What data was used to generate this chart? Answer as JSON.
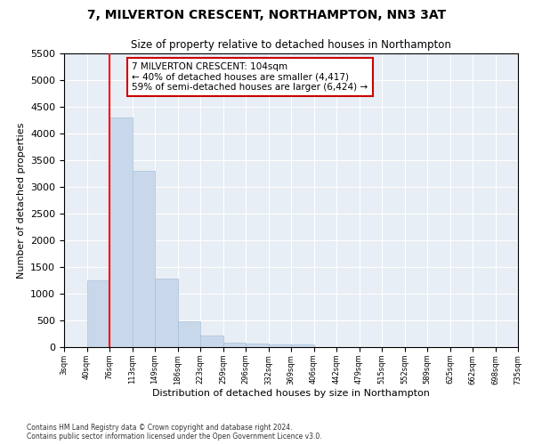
{
  "title": "7, MILVERTON CRESCENT, NORTHAMPTON, NN3 3AT",
  "subtitle": "Size of property relative to detached houses in Northampton",
  "xlabel": "Distribution of detached houses by size in Northampton",
  "ylabel": "Number of detached properties",
  "bar_color": "#c8d8ea",
  "bar_edgecolor": "#a8c0d8",
  "background_color": "#e8eef5",
  "grid_color": "#ffffff",
  "bin_labels": [
    "3sqm",
    "40sqm",
    "76sqm",
    "113sqm",
    "149sqm",
    "186sqm",
    "223sqm",
    "259sqm",
    "296sqm",
    "332sqm",
    "369sqm",
    "406sqm",
    "442sqm",
    "479sqm",
    "515sqm",
    "552sqm",
    "589sqm",
    "625sqm",
    "662sqm",
    "698sqm",
    "735sqm"
  ],
  "bar_values": [
    0,
    1250,
    4300,
    3300,
    1280,
    480,
    210,
    80,
    60,
    55,
    50,
    0,
    0,
    0,
    0,
    0,
    0,
    0,
    0,
    0
  ],
  "ylim": [
    0,
    5500
  ],
  "yticks": [
    0,
    500,
    1000,
    1500,
    2000,
    2500,
    3000,
    3500,
    4000,
    4500,
    5000,
    5500
  ],
  "property_line_x_label": "76sqm",
  "property_line_bin_index": 2,
  "annotation_text": "7 MILVERTON CRESCENT: 104sqm\n← 40% of detached houses are smaller (4,417)\n59% of semi-detached houses are larger (6,424) →",
  "annotation_box_color": "#ffffff",
  "annotation_box_edgecolor": "#cc0000",
  "footer": "Contains HM Land Registry data © Crown copyright and database right 2024.\nContains public sector information licensed under the Open Government Licence v3.0."
}
